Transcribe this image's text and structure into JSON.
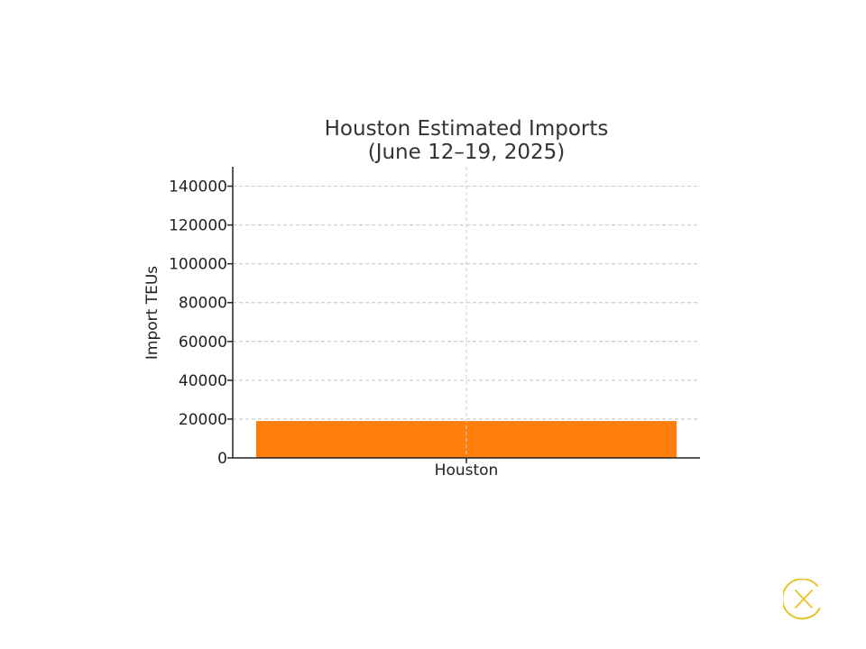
{
  "chart_data": {
    "type": "bar",
    "title_lines": [
      "Houston Estimated Imports",
      "(June 12–19, 2025)"
    ],
    "xlabel": "",
    "ylabel": "Import TEUs",
    "categories": [
      "Houston"
    ],
    "values": [
      19000
    ],
    "ylim": [
      0,
      150000
    ],
    "yticks": [
      0,
      20000,
      40000,
      60000,
      80000,
      100000,
      120000,
      140000
    ],
    "grid": true,
    "bar_color": "#ff7f0e"
  },
  "close_control": {
    "icon": "close-icon",
    "color": "#e8c22a"
  }
}
